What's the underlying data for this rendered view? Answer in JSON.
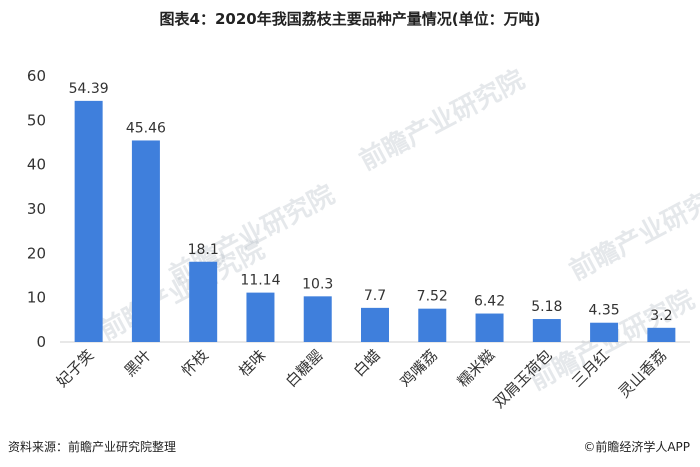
{
  "title": "图表4：2020年我国荔枝主要品种产量情况(单位：万吨)",
  "footer": {
    "source": "资料来源：前瞻产业研究院整理",
    "brand": "©前瞻经济学人APP"
  },
  "watermark": "前瞻产业研究院",
  "colors": {
    "bar": "#3f7fdc",
    "axis": "#d0d0d0",
    "text": "#333333"
  },
  "chart_data": {
    "type": "bar",
    "title": "图表4：2020年我国荔枝主要品种产量情况(单位：万吨)",
    "categories": [
      "妃子笑",
      "黑叶",
      "怀枝",
      "桂味",
      "白糖罂",
      "白蜡",
      "鸡嘴荔",
      "糯米糍",
      "双肩玉荷包",
      "三月红",
      "灵山香荔"
    ],
    "values": [
      54.39,
      45.46,
      18.1,
      11.14,
      10.3,
      7.7,
      7.52,
      6.42,
      5.18,
      4.35,
      3.2
    ],
    "data_labels": [
      "54.39",
      "45.46",
      "18.1",
      "11.14",
      "10.3",
      "7.7",
      "7.52",
      "6.42",
      "5.18",
      "4.35",
      "3.2"
    ],
    "yticks": [
      "0",
      "10",
      "20",
      "30",
      "40",
      "50",
      "60"
    ],
    "ylim": [
      0,
      60
    ],
    "grid": false,
    "legend": "none"
  }
}
